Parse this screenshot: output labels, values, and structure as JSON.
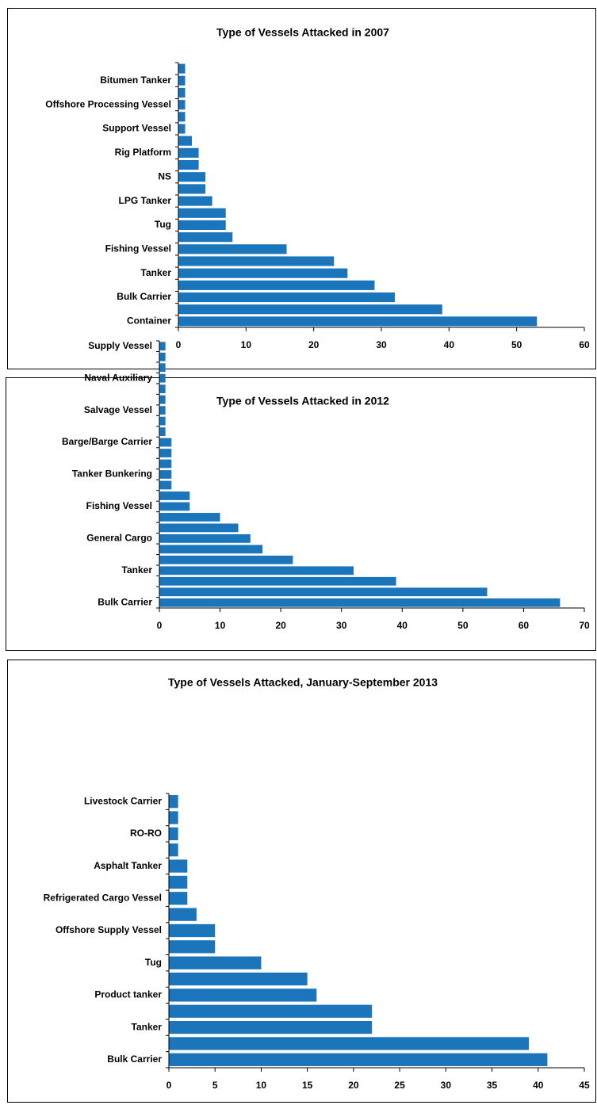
{
  "chart_data": [
    {
      "type": "bar",
      "orientation": "horizontal",
      "title": "Type of Vessels Attacked in 2007",
      "color": "#1a75bb",
      "categories": [
        "Container",
        null,
        "Bulk Carrier",
        null,
        "Tanker",
        null,
        "Fishing Vessel",
        null,
        "Tug",
        null,
        "LPG Tanker",
        null,
        "NS",
        null,
        "Rig Platform",
        null,
        "Support Vessel",
        null,
        "Offshore Processing Vessel",
        null,
        "Bitumen Tanker",
        null
      ],
      "values": [
        53,
        39,
        32,
        29,
        25,
        23,
        16,
        8,
        7,
        7,
        5,
        4,
        4,
        3,
        3,
        2,
        1,
        1,
        1,
        1,
        1,
        1
      ],
      "xlim": [
        0,
        60
      ],
      "xticks": [
        0,
        10,
        20,
        30,
        40,
        50,
        60
      ]
    },
    {
      "type": "bar",
      "orientation": "horizontal",
      "title": "Type of Vessels Attacked in 2012",
      "color": "#1a75bb",
      "categories": [
        "Bulk Carrier",
        null,
        null,
        "Tanker",
        null,
        null,
        "General Cargo",
        null,
        null,
        "Fishing Vessel",
        null,
        null,
        "Tanker Bunkering",
        null,
        null,
        "Barge/Barge Carrier",
        null,
        null,
        "Salvage Vessel",
        null,
        null,
        "Naval Auxiliary",
        null,
        null,
        "Supply Vessel"
      ],
      "values": [
        66,
        54,
        39,
        32,
        22,
        17,
        15,
        13,
        10,
        5,
        5,
        2,
        2,
        2,
        2,
        2,
        1,
        1,
        1,
        1,
        1,
        1,
        1,
        1,
        1
      ],
      "xlim": [
        0,
        70
      ],
      "xticks": [
        0,
        10,
        20,
        30,
        40,
        50,
        60,
        70
      ]
    },
    {
      "type": "bar",
      "orientation": "horizontal",
      "title": "Type of Vessels Attacked, January-September 2013",
      "color": "#1a75bb",
      "categories": [
        "Bulk Carrier",
        null,
        "Tanker",
        null,
        "Product tanker",
        null,
        "Tug",
        null,
        "Offshore Supply Vessel",
        null,
        "Refrigerated Cargo Vessel",
        null,
        "Asphalt Tanker",
        null,
        "RO-RO",
        null,
        "Livestock Carrier"
      ],
      "values": [
        41,
        39,
        22,
        22,
        16,
        15,
        10,
        5,
        5,
        3,
        2,
        2,
        2,
        1,
        1,
        1,
        1
      ],
      "xlim": [
        0,
        45
      ],
      "xticks": [
        0,
        5,
        10,
        15,
        20,
        25,
        30,
        35,
        40,
        45
      ]
    }
  ]
}
